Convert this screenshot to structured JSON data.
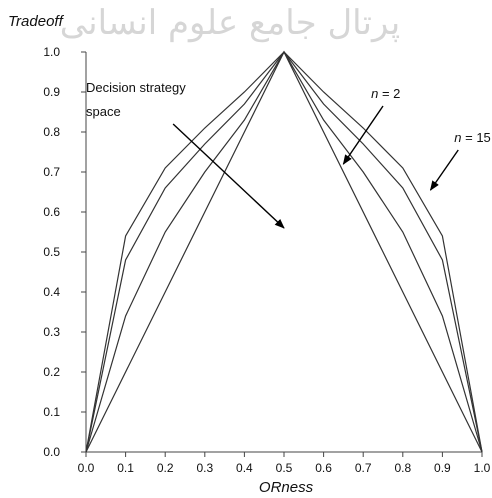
{
  "watermark": "پرتال جامع علوم انسانی",
  "chart_data": {
    "type": "line",
    "ylabel": "Tradeoff",
    "xlabel": "ORness",
    "xlim": [
      0.0,
      1.0
    ],
    "ylim": [
      0.0,
      1.0
    ],
    "x_ticks": [
      "0.0",
      "0.1",
      "0.2",
      "0.3",
      "0.4",
      "0.5",
      "0.6",
      "0.7",
      "0.8",
      "0.9",
      "1.0"
    ],
    "y_ticks": [
      "0.0",
      "0.1",
      "0.2",
      "0.3",
      "0.4",
      "0.5",
      "0.6",
      "0.7",
      "0.8",
      "0.9",
      "1.0"
    ],
    "grid": false,
    "line_color": "#333333",
    "series": [
      {
        "x": [
          0,
          0.5,
          1
        ],
        "y": [
          0,
          1,
          0
        ]
      },
      {
        "x": [
          0,
          0.1,
          0.2,
          0.3,
          0.4,
          0.5,
          0.6,
          0.7,
          0.8,
          0.9,
          1
        ],
        "y": [
          0,
          0.34,
          0.55,
          0.7,
          0.83,
          1,
          0.83,
          0.7,
          0.55,
          0.34,
          0
        ]
      },
      {
        "x": [
          0,
          0.1,
          0.2,
          0.3,
          0.4,
          0.5,
          0.6,
          0.7,
          0.8,
          0.9,
          1
        ],
        "y": [
          0,
          0.48,
          0.66,
          0.77,
          0.87,
          1,
          0.87,
          0.77,
          0.66,
          0.48,
          0
        ]
      },
      {
        "x": [
          0,
          0.1,
          0.2,
          0.3,
          0.4,
          0.5,
          0.6,
          0.7,
          0.8,
          0.9,
          1
        ],
        "y": [
          0,
          0.54,
          0.71,
          0.81,
          0.9,
          1,
          0.9,
          0.81,
          0.71,
          0.54,
          0
        ]
      }
    ],
    "annotations": [
      {
        "text": "Decision strategy",
        "x": 0.0,
        "y": 0.9,
        "arrow": false
      },
      {
        "text": "space",
        "x": 0.0,
        "y": 0.84,
        "arrow_from": [
          0.22,
          0.82
        ],
        "arrow_to": [
          0.5,
          0.56
        ]
      },
      {
        "prefix": "n",
        "text": " = 2",
        "x": 0.72,
        "y": 0.885,
        "arrow_from": [
          0.75,
          0.865
        ],
        "arrow_to": [
          0.65,
          0.72
        ]
      },
      {
        "prefix": "n",
        "text": " = 15",
        "x": 0.93,
        "y": 0.775,
        "arrow_from": [
          0.94,
          0.755
        ],
        "arrow_to": [
          0.87,
          0.655
        ]
      }
    ]
  }
}
